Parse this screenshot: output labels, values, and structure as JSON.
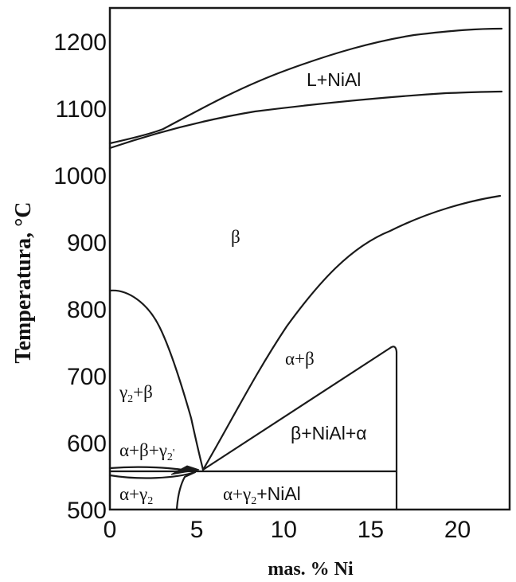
{
  "diagram": {
    "ylabel": "Temperatura, °C",
    "xlabel": "mas. % Ni",
    "x_ticks": [
      "0",
      "5",
      "10",
      "15",
      "20"
    ],
    "y_ticks": [
      "500",
      "600",
      "700",
      "800",
      "900",
      "1000",
      "1100",
      "1200"
    ],
    "xlim": [
      0,
      23
    ],
    "ylim": [
      500,
      1250
    ],
    "regions": {
      "l_nial": "L+NiAl",
      "beta": "β",
      "alpha_beta": "α+β",
      "gamma2_beta": {
        "main": "γ",
        "sub": "2",
        "tail": "+β"
      },
      "beta_nial_alpha": "β+NiAl+α",
      "alpha_beta_gamma2": {
        "main": "α+β+γ",
        "sub": "2",
        "tail": "'"
      },
      "alpha_gamma2": {
        "main": "α+γ",
        "sub": "2"
      },
      "alpha_gamma2_nial": {
        "main": "α+γ",
        "sub": "2",
        "tail": "+NiAl"
      }
    }
  }
}
